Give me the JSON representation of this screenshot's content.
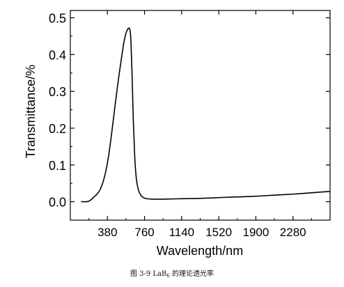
{
  "top_text": "",
  "caption": {
    "prefix": "图 3-9 LaB",
    "subscript": "6",
    "suffix": " 的理论透光率"
  },
  "colors": {
    "axis": "#000000",
    "line": "#000000",
    "background": "#ffffff"
  },
  "chart_data": {
    "type": "line",
    "title": "",
    "xlabel": "Wavelength/nm",
    "ylabel": "Transmittance/%",
    "xlim": [
      0,
      2660
    ],
    "ylim": [
      -0.05,
      0.52
    ],
    "xticks": [
      380,
      760,
      1140,
      1520,
      1900,
      2280
    ],
    "yticks": [
      0.0,
      0.1,
      0.2,
      0.3,
      0.4,
      0.5
    ],
    "ytick_labels": [
      "0.0",
      "0.1",
      "0.2",
      "0.3",
      "0.4",
      "0.5"
    ],
    "grid": false,
    "legend": "none",
    "series": [
      {
        "x": [
          110,
          150,
          185,
          215,
          245,
          275,
          305,
          335,
          365,
          395,
          425,
          455,
          485,
          515,
          545,
          560,
          575,
          590,
          600,
          610,
          620,
          632,
          645,
          660,
          675,
          690,
          705,
          725,
          750,
          790,
          850,
          950,
          1100,
          1300,
          1500,
          1700,
          1900,
          2100,
          2300,
          2500,
          2660
        ],
        "y": [
          0.0,
          0.0,
          0.001,
          0.006,
          0.014,
          0.021,
          0.033,
          0.054,
          0.085,
          0.13,
          0.19,
          0.255,
          0.318,
          0.375,
          0.428,
          0.448,
          0.462,
          0.47,
          0.472,
          0.468,
          0.44,
          0.35,
          0.22,
          0.12,
          0.065,
          0.04,
          0.026,
          0.017,
          0.011,
          0.008,
          0.007,
          0.007,
          0.008,
          0.009,
          0.011,
          0.013,
          0.015,
          0.018,
          0.021,
          0.025,
          0.028
        ]
      }
    ]
  }
}
